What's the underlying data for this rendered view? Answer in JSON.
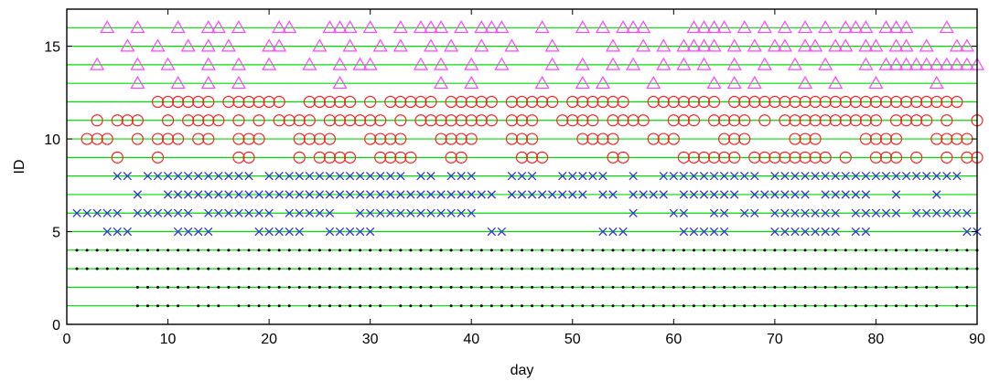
{
  "chart_data": {
    "type": "scatter",
    "title": "",
    "xlabel": "day",
    "ylabel": "ID",
    "xlim": [
      0,
      90
    ],
    "ylim": [
      0,
      17
    ],
    "xticks": [
      0,
      10,
      20,
      30,
      40,
      50,
      60,
      70,
      80,
      90
    ],
    "yticks": [
      0,
      5,
      10,
      15
    ],
    "grid": "horizontal lines at each ID (1-16)",
    "colors": {
      "id_lines": "#00dd00",
      "dot": "#000000",
      "cross": "#3333dd",
      "circle": "#ff2222",
      "triangle": "#ff44ff"
    },
    "series": [
      {
        "id": 1,
        "marker": "dot",
        "days": [
          7,
          8,
          9,
          10,
          11,
          13,
          14,
          15,
          17,
          18,
          19,
          20,
          21,
          22,
          24,
          25,
          26,
          27,
          28,
          29,
          30,
          31,
          33,
          34,
          35,
          36,
          38,
          39,
          40,
          41,
          42,
          43,
          44,
          45,
          46,
          47,
          48,
          49,
          50,
          51,
          52,
          53,
          54,
          55,
          56,
          57,
          58,
          59,
          60,
          61,
          62,
          63,
          64,
          65,
          66,
          67,
          68,
          69,
          70,
          71,
          72,
          73,
          74,
          75,
          76,
          77,
          78,
          79,
          80,
          81,
          82,
          83,
          84,
          85,
          86,
          88,
          89
        ]
      },
      {
        "id": 2,
        "marker": "dot",
        "days": [
          7,
          8,
          9,
          10,
          11,
          12,
          13,
          14,
          15,
          16,
          17,
          18,
          19,
          20,
          21,
          22,
          23,
          24,
          25,
          26,
          27,
          28,
          29,
          30,
          31,
          32,
          33,
          34,
          35,
          36,
          37,
          38,
          39,
          40,
          41,
          42,
          43,
          44,
          45,
          46,
          47,
          48,
          49,
          50,
          51,
          52,
          53,
          54,
          55,
          56,
          57,
          58,
          59,
          60,
          61,
          62,
          63,
          64,
          65,
          66,
          67,
          68,
          69,
          70,
          71,
          72,
          73,
          74,
          75,
          76,
          77,
          78,
          79,
          80,
          81,
          82,
          83,
          84,
          85,
          86,
          88,
          89
        ]
      },
      {
        "id": 3,
        "marker": "dot",
        "days": [
          1,
          2,
          3,
          4,
          5,
          6,
          7,
          8,
          9,
          10,
          11,
          12,
          13,
          14,
          15,
          16,
          17,
          18,
          19,
          20,
          21,
          22,
          23,
          24,
          25,
          26,
          27,
          28,
          29,
          30,
          31,
          32,
          33,
          34,
          35,
          36,
          37,
          38,
          39,
          40,
          41,
          42,
          43,
          44,
          45,
          46,
          47,
          48,
          49,
          50,
          51,
          52,
          53,
          54,
          55,
          56,
          57,
          58,
          59,
          60,
          61,
          62,
          63,
          64,
          65,
          66,
          67,
          68,
          69,
          70,
          71,
          72,
          73,
          74,
          75,
          76,
          77,
          78,
          79,
          80,
          81,
          82,
          83,
          84,
          85,
          86,
          87,
          88,
          89,
          90
        ]
      },
      {
        "id": 4,
        "marker": "dot",
        "days": [
          1,
          2,
          3,
          4,
          5,
          6,
          7,
          8,
          9,
          10,
          11,
          12,
          13,
          14,
          15,
          16,
          17,
          18,
          19,
          20,
          21,
          22,
          23,
          24,
          25,
          26,
          27,
          28,
          29,
          30,
          31,
          32,
          33,
          34,
          35,
          36,
          37,
          38,
          39,
          40,
          41,
          42,
          43,
          44,
          45,
          46,
          47,
          48,
          49,
          50,
          51,
          52,
          53,
          54,
          55,
          56,
          57,
          58,
          59,
          60,
          61,
          62,
          63,
          64,
          65,
          66,
          67,
          68,
          69,
          70,
          71,
          72,
          73,
          74,
          75,
          76,
          77,
          78,
          79,
          80,
          81,
          82,
          83,
          84,
          85,
          86,
          87,
          88,
          89,
          90
        ]
      },
      {
        "id": 5,
        "marker": "cross",
        "days": [
          4,
          5,
          6,
          11,
          12,
          13,
          14,
          19,
          20,
          21,
          22,
          23,
          26,
          27,
          28,
          29,
          30,
          42,
          43,
          53,
          54,
          55,
          61,
          62,
          63,
          64,
          65,
          70,
          71,
          72,
          73,
          74,
          75,
          76,
          78,
          79,
          89,
          90
        ]
      },
      {
        "id": 6,
        "marker": "cross",
        "days": [
          1,
          2,
          3,
          4,
          5,
          7,
          8,
          9,
          10,
          11,
          12,
          14,
          15,
          16,
          17,
          18,
          19,
          20,
          22,
          23,
          24,
          25,
          26,
          29,
          30,
          31,
          32,
          33,
          34,
          35,
          36,
          37,
          38,
          39,
          40,
          56,
          60,
          61,
          64,
          65,
          67,
          68,
          70,
          71,
          72,
          73,
          74,
          75,
          76,
          78,
          79,
          80,
          81,
          82,
          84,
          85,
          86,
          87,
          88,
          89
        ]
      },
      {
        "id": 7,
        "marker": "cross",
        "days": [
          7,
          10,
          11,
          12,
          13,
          14,
          15,
          16,
          17,
          18,
          19,
          20,
          21,
          22,
          23,
          24,
          25,
          26,
          27,
          28,
          29,
          30,
          31,
          32,
          33,
          34,
          35,
          36,
          37,
          38,
          39,
          40,
          41,
          42,
          44,
          45,
          46,
          47,
          48,
          49,
          50,
          51,
          53,
          54,
          56,
          57,
          58,
          59,
          61,
          62,
          63,
          64,
          65,
          66,
          68,
          69,
          70,
          71,
          72,
          73,
          75,
          76,
          77,
          78,
          79,
          82,
          86
        ]
      },
      {
        "id": 8,
        "marker": "cross",
        "days": [
          5,
          6,
          8,
          9,
          10,
          11,
          12,
          13,
          14,
          15,
          16,
          17,
          18,
          20,
          21,
          22,
          23,
          24,
          25,
          26,
          27,
          28,
          29,
          30,
          31,
          32,
          33,
          35,
          36,
          38,
          39,
          40,
          44,
          45,
          46,
          49,
          50,
          51,
          52,
          53,
          56,
          59,
          60,
          61,
          62,
          63,
          64,
          65,
          66,
          67,
          68,
          70,
          71,
          72,
          73,
          74,
          75,
          76,
          77,
          78,
          79,
          80,
          81,
          82,
          83,
          84,
          85,
          86,
          87,
          88
        ]
      },
      {
        "id": 9,
        "marker": "circle",
        "days": [
          5,
          9,
          17,
          18,
          23,
          25,
          26,
          27,
          28,
          31,
          32,
          33,
          34,
          38,
          39,
          45,
          46,
          47,
          54,
          55,
          61,
          62,
          63,
          64,
          65,
          66,
          68,
          69,
          70,
          71,
          72,
          73,
          74,
          75,
          77,
          80,
          81,
          82,
          84,
          87,
          89,
          90
        ]
      },
      {
        "id": 10,
        "marker": "circle",
        "days": [
          2,
          3,
          4,
          7,
          9,
          10,
          11,
          13,
          14,
          17,
          18,
          19,
          23,
          24,
          25,
          26,
          30,
          31,
          32,
          33,
          37,
          38,
          39,
          40,
          44,
          45,
          46,
          51,
          52,
          53,
          54,
          58,
          59,
          60,
          65,
          66,
          67,
          72,
          73,
          74,
          79,
          80,
          81,
          82,
          86,
          87,
          88,
          89
        ]
      },
      {
        "id": 11,
        "marker": "circle",
        "days": [
          3,
          5,
          6,
          7,
          10,
          12,
          13,
          14,
          15,
          17,
          19,
          21,
          22,
          23,
          24,
          26,
          27,
          28,
          29,
          30,
          31,
          33,
          35,
          36,
          37,
          38,
          39,
          40,
          41,
          42,
          44,
          45,
          46,
          49,
          50,
          51,
          52,
          54,
          55,
          56,
          57,
          60,
          61,
          62,
          64,
          65,
          66,
          67,
          69,
          71,
          72,
          73,
          74,
          75,
          76,
          77,
          78,
          79,
          80,
          82,
          83,
          84,
          85,
          87,
          90
        ]
      },
      {
        "id": 12,
        "marker": "circle",
        "days": [
          9,
          10,
          11,
          12,
          13,
          14,
          16,
          17,
          18,
          19,
          20,
          21,
          24,
          25,
          26,
          27,
          28,
          30,
          32,
          33,
          34,
          35,
          36,
          38,
          39,
          40,
          41,
          42,
          44,
          45,
          46,
          47,
          48,
          50,
          51,
          52,
          53,
          54,
          55,
          58,
          59,
          60,
          61,
          62,
          63,
          64,
          66,
          67,
          68,
          69,
          70,
          71,
          72,
          73,
          74,
          75,
          76,
          77,
          78,
          79,
          80,
          81,
          82,
          83,
          84,
          85,
          86,
          87,
          88
        ]
      },
      {
        "id": 13,
        "marker": "triangle",
        "days": [
          7,
          11,
          14,
          17,
          27,
          37,
          40,
          47,
          51,
          53,
          58,
          64,
          66,
          68,
          73,
          76,
          80,
          86
        ]
      },
      {
        "id": 14,
        "marker": "triangle",
        "days": [
          3,
          7,
          10,
          14,
          17,
          20,
          24,
          27,
          29,
          30,
          35,
          37,
          40,
          43,
          48,
          51,
          54,
          56,
          59,
          61,
          63,
          66,
          69,
          72,
          75,
          79,
          81,
          82,
          83,
          84,
          85,
          86,
          87,
          88,
          89,
          90
        ]
      },
      {
        "id": 15,
        "marker": "triangle",
        "days": [
          6,
          9,
          12,
          14,
          16,
          20,
          21,
          25,
          28,
          31,
          33,
          36,
          38,
          41,
          44,
          48,
          54,
          57,
          59,
          61,
          62,
          63,
          64,
          66,
          68,
          70,
          71,
          73,
          74,
          76,
          77,
          79,
          80,
          82,
          83,
          85,
          88,
          89
        ]
      },
      {
        "id": 16,
        "marker": "triangle",
        "days": [
          4,
          7,
          11,
          14,
          15,
          17,
          21,
          22,
          26,
          27,
          28,
          30,
          33,
          35,
          36,
          37,
          39,
          41,
          42,
          43,
          47,
          51,
          53,
          55,
          56,
          57,
          62,
          63,
          64,
          65,
          67,
          69,
          71,
          73,
          75,
          77,
          78,
          79,
          81,
          82,
          83,
          87
        ]
      }
    ]
  }
}
